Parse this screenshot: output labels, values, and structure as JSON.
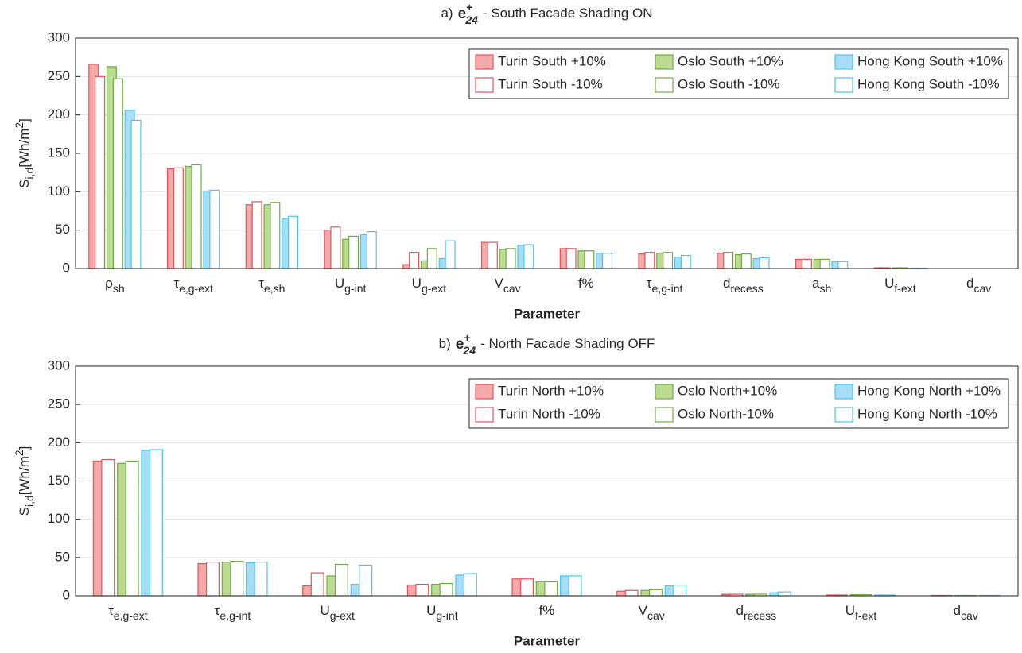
{
  "chart_data": [
    {
      "type": "bar",
      "title": {
        "prefix": "a)",
        "symbol": "e",
        "sup": "+",
        "sub": "24",
        "text": "- South Facade Shading ON"
      },
      "xlabel": "Parameter",
      "ylabel": {
        "main": "S",
        "sub": "i,d",
        "unit": "[Wh/m",
        "sup": "2",
        "close": "]"
      },
      "categories": [
        {
          "main": "ρ",
          "sub": "sh"
        },
        {
          "main": "τ",
          "sub": "e,g-ext"
        },
        {
          "main": "τ",
          "sub": "e,sh"
        },
        {
          "main": "U",
          "sub": "g-int"
        },
        {
          "main": "U",
          "sub": "g-ext"
        },
        {
          "main": "V",
          "sub": "cav"
        },
        {
          "main": "f%"
        },
        {
          "main": "τ",
          "sub": "e,g-int"
        },
        {
          "main": "d",
          "sub": "recess"
        },
        {
          "main": "a",
          "sub": "sh"
        },
        {
          "main": "U",
          "sub": "f-ext"
        },
        {
          "main": "d",
          "sub": "cav"
        }
      ],
      "series": [
        {
          "name": "Turin South +10%",
          "color": "#e8505a",
          "fill": "#f5a9a9",
          "values": [
            266,
            130,
            83,
            50,
            5,
            34,
            26,
            19,
            20,
            12,
            1,
            0
          ]
        },
        {
          "name": "Turin South -10%",
          "color": "#e8505a",
          "fill": "#ffffff",
          "values": [
            250,
            131,
            87,
            54,
            21,
            34,
            26,
            21,
            21,
            12,
            1,
            0
          ]
        },
        {
          "name": "Oslo South +10%",
          "color": "#70ad47",
          "fill": "#bcdb91",
          "values": [
            263,
            133,
            83,
            38,
            10,
            25,
            23,
            20,
            18,
            12,
            1,
            0
          ]
        },
        {
          "name": "Oslo South -10%",
          "color": "#70ad47",
          "fill": "#ffffff",
          "values": [
            247,
            135,
            86,
            42,
            26,
            26,
            23,
            21,
            19,
            12,
            1,
            0
          ]
        },
        {
          "name": "Hong Kong South +10%",
          "color": "#4fc3ea",
          "fill": "#a8def5",
          "values": [
            206,
            101,
            65,
            44,
            13,
            30,
            20,
            15,
            13,
            9,
            0.5,
            0
          ]
        },
        {
          "name": "Hong Kong South -10%",
          "color": "#4fc3ea",
          "fill": "#ffffff",
          "values": [
            193,
            102,
            68,
            48,
            36,
            31,
            20,
            17,
            14,
            9,
            0.5,
            0
          ]
        }
      ],
      "ylim": [
        0,
        300
      ],
      "yticks": [
        0,
        50,
        100,
        150,
        200,
        250,
        300
      ],
      "grid": true,
      "legend": "northeast"
    },
    {
      "type": "bar",
      "title": {
        "prefix": "b)",
        "symbol": "e",
        "sup": "+",
        "sub": "24",
        "text": "- North Facade Shading OFF"
      },
      "xlabel": "Parameter",
      "ylabel": {
        "main": "S",
        "sub": "i,d",
        "unit": "[Wh/m",
        "sup": "2",
        "close": "]"
      },
      "categories": [
        {
          "main": "τ",
          "sub": "e,g-ext"
        },
        {
          "main": "τ",
          "sub": "e,g-int"
        },
        {
          "main": "U",
          "sub": "g-ext"
        },
        {
          "main": "U",
          "sub": "g-int"
        },
        {
          "main": "f%"
        },
        {
          "main": "V",
          "sub": "cav"
        },
        {
          "main": "d",
          "sub": "recess"
        },
        {
          "main": "U",
          "sub": "f-ext"
        },
        {
          "main": "d",
          "sub": "cav"
        }
      ],
      "series": [
        {
          "name": "Turin North +10%",
          "color": "#e8505a",
          "fill": "#f5a9a9",
          "values": [
            176,
            42,
            13,
            14,
            22,
            6,
            2,
            1,
            0.5
          ]
        },
        {
          "name": "Turin North -10%",
          "color": "#e8505a",
          "fill": "#ffffff",
          "values": [
            178,
            44,
            30,
            15,
            22,
            7,
            2,
            1,
            0.5
          ]
        },
        {
          "name": "Oslo North+10%",
          "color": "#70ad47",
          "fill": "#bcdb91",
          "values": [
            173,
            44,
            26,
            15,
            19,
            7,
            2,
            1.5,
            0.5
          ]
        },
        {
          "name": "Oslo North-10%",
          "color": "#70ad47",
          "fill": "#ffffff",
          "values": [
            176,
            45,
            41,
            16,
            19,
            8,
            2,
            1.5,
            0.5
          ]
        },
        {
          "name": "Hong Kong North +10%",
          "color": "#4fc3ea",
          "fill": "#a8def5",
          "values": [
            190,
            43,
            15,
            27,
            26,
            13,
            4,
            1,
            0.5
          ]
        },
        {
          "name": "Hong Kong North -10%",
          "color": "#4fc3ea",
          "fill": "#ffffff",
          "values": [
            191,
            44,
            40,
            29,
            26,
            14,
            5,
            1,
            0.5
          ]
        }
      ],
      "ylim": [
        0,
        300
      ],
      "yticks": [
        0,
        50,
        100,
        150,
        200,
        250,
        300
      ],
      "grid": true,
      "legend": "northeast"
    }
  ]
}
